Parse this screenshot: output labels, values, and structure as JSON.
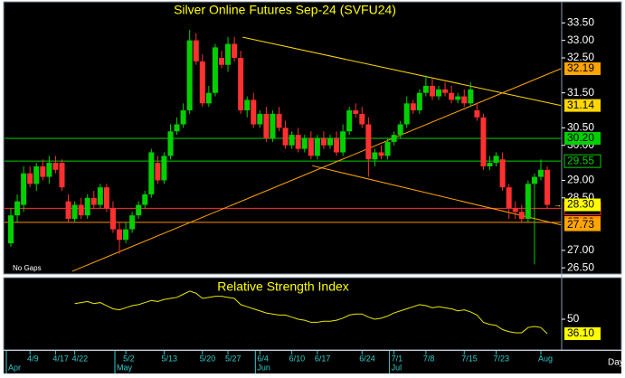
{
  "chart_data": [
    {
      "type": "candlestick",
      "title": "Silver Online Futures Sep-24 (SVFU24)",
      "note": "No Gaps",
      "categories": [
        null,
        null,
        null,
        "4/9",
        null,
        null,
        null,
        "4/17",
        null,
        null,
        "4/22",
        null,
        null,
        null,
        null,
        null,
        null,
        null,
        "5/2",
        null,
        null,
        null,
        null,
        null,
        "5/13",
        null,
        null,
        null,
        null,
        null,
        "5/20",
        null,
        null,
        null,
        "5/27",
        null,
        null,
        null,
        null,
        "6/4",
        null,
        null,
        null,
        null,
        "6/10",
        null,
        null,
        null,
        "6/17",
        null,
        null,
        null,
        null,
        null,
        null,
        "6/24",
        null,
        null,
        null,
        null,
        "7/1",
        null,
        null,
        null,
        null,
        "7/8",
        null,
        null,
        null,
        null,
        null,
        "7/15",
        null,
        null,
        null,
        null,
        "7/23",
        null,
        null,
        null,
        null,
        null,
        null,
        "Aug",
        null
      ],
      "months": [
        "Apr",
        null,
        null,
        null,
        null,
        null,
        null,
        null,
        null,
        null,
        null,
        null,
        null,
        null,
        null,
        null,
        null,
        "May",
        null,
        null,
        null,
        null,
        null,
        null,
        null,
        null,
        null,
        null,
        null,
        null,
        null,
        null,
        null,
        null,
        null,
        null,
        null,
        null,
        null,
        "Jun",
        null,
        null,
        null,
        null,
        null,
        null,
        null,
        null,
        null,
        null,
        null,
        null,
        null,
        null,
        null,
        null,
        null,
        null,
        null,
        null,
        "Jul",
        null,
        null,
        null,
        null,
        null,
        null,
        null,
        null,
        null,
        null,
        null,
        null,
        null,
        null,
        null,
        null,
        null,
        null,
        null,
        null,
        null,
        null,
        null,
        null
      ],
      "x_axis_label": "Day",
      "open": [
        27.2,
        28.0,
        28.3,
        29.2,
        28.9,
        29.4,
        29.1,
        29.5,
        29.5,
        28.4,
        27.9,
        28.3,
        28.0,
        28.5,
        28.3,
        28.8,
        28.2,
        27.6,
        27.3,
        27.6,
        28.0,
        28.3,
        28.6,
        29.5,
        29.0,
        29.7,
        30.4,
        30.6,
        31.0,
        33.0,
        32.4,
        31.2,
        31.5,
        32.5,
        32.3,
        32.9,
        32.5,
        31.0,
        31.3,
        30.6,
        30.9,
        30.2,
        30.9,
        30.5,
        30.0,
        30.3,
        29.9,
        30.2,
        29.7,
        30.2,
        30.0,
        30.2,
        29.8,
        30.4,
        31.0,
        30.9,
        30.6,
        29.6,
        29.8,
        29.7,
        30.1,
        30.3,
        30.6,
        31.2,
        31.0,
        31.5,
        31.7,
        31.4,
        31.6,
        31.5,
        31.3,
        31.4,
        31.2,
        31.0,
        30.8,
        29.4,
        29.5,
        29.6,
        28.8,
        28.2,
        28.1,
        27.9,
        28.9,
        29.1,
        29.3
      ],
      "high": [
        28.2,
        28.6,
        29.4,
        29.4,
        29.5,
        29.6,
        29.7,
        29.7,
        29.6,
        28.6,
        28.4,
        28.5,
        28.6,
        28.7,
        28.9,
        28.9,
        28.4,
        27.8,
        27.8,
        28.1,
        28.4,
        28.7,
        29.9,
        29.7,
        29.8,
        30.6,
        30.8,
        31.2,
        33.3,
        33.2,
        32.6,
        31.7,
        32.9,
        32.7,
        33.1,
        33.1,
        32.7,
        31.4,
        31.5,
        31.0,
        31.1,
        31.0,
        31.1,
        30.7,
        30.4,
        30.5,
        30.3,
        30.4,
        30.3,
        30.4,
        30.3,
        30.4,
        30.6,
        31.1,
        31.2,
        31.1,
        30.8,
        29.9,
        30.0,
        30.2,
        30.4,
        30.7,
        31.4,
        31.3,
        31.6,
        32.0,
        31.9,
        31.7,
        31.8,
        31.7,
        31.5,
        31.6,
        31.8,
        31.2,
        30.9,
        29.7,
        29.8,
        29.8,
        28.9,
        28.4,
        28.3,
        29.0,
        29.2,
        29.6,
        29.4
      ],
      "low": [
        27.1,
        27.8,
        28.1,
        28.8,
        28.7,
        29.0,
        28.9,
        29.2,
        28.7,
        27.8,
        27.8,
        27.9,
        27.9,
        28.2,
        28.2,
        28.1,
        27.5,
        26.9,
        27.2,
        27.5,
        27.9,
        28.2,
        28.5,
        28.9,
        28.9,
        29.6,
        30.3,
        30.5,
        30.9,
        32.3,
        31.1,
        31.1,
        31.4,
        32.2,
        32.1,
        32.4,
        30.9,
        30.8,
        30.5,
        30.5,
        30.1,
        30.1,
        30.4,
        29.9,
        29.9,
        29.8,
        29.8,
        29.6,
        29.6,
        29.9,
        29.9,
        29.7,
        29.7,
        30.3,
        30.8,
        30.5,
        29.1,
        29.4,
        29.6,
        29.6,
        30.0,
        30.2,
        30.5,
        30.9,
        30.9,
        31.4,
        31.3,
        31.3,
        31.4,
        31.2,
        31.2,
        31.1,
        31.1,
        30.7,
        29.3,
        29.3,
        29.4,
        28.7,
        27.9,
        27.9,
        27.8,
        27.8,
        26.6,
        29.0,
        28.2
      ],
      "close": [
        28.0,
        28.4,
        29.2,
        28.9,
        29.4,
        29.1,
        29.5,
        29.3,
        28.8,
        27.9,
        28.3,
        28.0,
        28.5,
        28.3,
        28.8,
        28.2,
        27.6,
        27.3,
        27.6,
        28.0,
        28.3,
        28.6,
        29.8,
        29.0,
        29.7,
        30.4,
        30.6,
        31.0,
        33.0,
        32.4,
        31.2,
        31.5,
        32.8,
        32.3,
        32.9,
        32.5,
        31.0,
        31.3,
        30.6,
        30.9,
        30.2,
        30.9,
        30.5,
        30.0,
        30.3,
        29.9,
        30.2,
        29.7,
        30.2,
        30.0,
        30.2,
        29.8,
        30.4,
        31.0,
        30.9,
        30.6,
        29.6,
        29.8,
        29.7,
        30.1,
        30.3,
        30.6,
        31.2,
        31.0,
        31.5,
        31.7,
        31.4,
        31.6,
        31.5,
        31.3,
        31.4,
        31.2,
        31.6,
        30.8,
        29.4,
        29.5,
        29.7,
        28.8,
        28.2,
        28.1,
        27.9,
        28.9,
        29.1,
        29.3,
        28.3
      ],
      "up_color": "#00d000",
      "down_color": "#ff3030",
      "ylim": [
        26.35,
        34.05
      ],
      "yticks": [
        {
          "value": 33.5,
          "label": "33.50"
        },
        {
          "value": 33,
          "label": "33.00"
        },
        {
          "value": 32.5,
          "label": "32.50"
        },
        {
          "value": 31.5,
          "label": "31.50"
        },
        {
          "value": 30.5,
          "label": "30.50"
        },
        {
          "value": 30,
          "label": "30.00"
        },
        {
          "value": 29,
          "label": "29.00"
        },
        {
          "value": 28.5,
          "label": "28.50"
        },
        {
          "value": 27,
          "label": "27.00"
        },
        {
          "value": 26.5,
          "label": "26.50"
        }
      ],
      "levels": [
        {
          "value": 30.2,
          "label": "30.20",
          "color": "#00d000",
          "style": "box"
        },
        {
          "value": 29.55,
          "label": "29.55",
          "color": "#00d000",
          "style": "text"
        },
        {
          "value": 28.2,
          "label": "28.20",
          "color": "#ff3030",
          "style": "text"
        },
        {
          "value": 27.8,
          "label": "27.80",
          "color": "#ff8c00",
          "style": "box"
        }
      ],
      "trendlines": [
        {
          "start_index": 36.3,
          "start": 33.09,
          "end": 31.14,
          "label": "31.14",
          "color": "#ffd700"
        },
        {
          "start_index": 9.6,
          "start": 26.4,
          "end": 32.19,
          "label": "32.19",
          "color": "#ffa500"
        },
        {
          "start_index": 47.2,
          "start": 29.42,
          "end": 27.73,
          "label": "27.73",
          "color": "#ffa500"
        }
      ],
      "last_price": {
        "value": 28.3,
        "label": "28.30",
        "color": "#ffff00"
      }
    },
    {
      "type": "line",
      "title": "Relative Strength Index",
      "color": "#e8e800",
      "values": [
        null,
        null,
        null,
        null,
        null,
        null,
        null,
        null,
        null,
        null,
        65,
        66,
        67,
        65,
        66,
        63,
        60,
        59,
        61,
        63,
        64,
        66,
        68,
        67,
        69,
        70,
        71,
        74,
        77,
        75,
        70,
        71,
        72,
        72,
        71,
        70,
        64,
        62,
        60,
        58,
        56,
        55,
        54,
        54,
        52,
        50,
        49,
        47,
        47,
        48,
        48,
        49,
        51,
        54,
        55,
        55,
        52,
        50,
        51,
        53,
        56,
        58,
        60,
        62,
        64,
        63,
        61,
        62,
        61,
        60,
        58,
        59,
        57,
        54,
        47,
        45,
        44,
        40,
        38,
        37,
        37,
        42,
        43,
        42,
        36.1
      ],
      "ylim": [
        21.3,
        89.1
      ],
      "yticks": [
        50
      ],
      "last_value": {
        "value": 36.1,
        "label": "36.10"
      }
    }
  ]
}
